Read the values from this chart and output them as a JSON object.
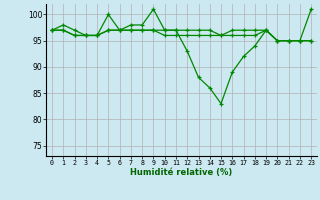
{
  "title": "",
  "xlabel": "Humidité relative (%)",
  "ylabel": "",
  "background_color": "#cce8f0",
  "plot_bg_color": "#cce8f0",
  "grid_color": "#b0b0b0",
  "line_color": "#008800",
  "xlim": [
    -0.5,
    23.5
  ],
  "ylim": [
    73,
    102
  ],
  "yticks": [
    75,
    80,
    85,
    90,
    95,
    100
  ],
  "xticks": [
    0,
    1,
    2,
    3,
    4,
    5,
    6,
    7,
    8,
    9,
    10,
    11,
    12,
    13,
    14,
    15,
    16,
    17,
    18,
    19,
    20,
    21,
    22,
    23
  ],
  "series1": [
    97,
    98,
    97,
    96,
    96,
    100,
    97,
    98,
    98,
    101,
    97,
    97,
    93,
    88,
    86,
    83,
    89,
    92,
    94,
    97,
    95,
    95,
    95,
    101
  ],
  "series2": [
    97,
    97,
    96,
    96,
    96,
    97,
    97,
    97,
    97,
    97,
    96,
    96,
    96,
    96,
    96,
    96,
    96,
    96,
    96,
    97,
    95,
    95,
    95,
    95
  ],
  "series3": [
    97,
    97,
    96,
    96,
    96,
    97,
    97,
    97,
    97,
    97,
    97,
    97,
    97,
    97,
    97,
    96,
    97,
    97,
    97,
    97,
    95,
    95,
    95,
    95
  ]
}
